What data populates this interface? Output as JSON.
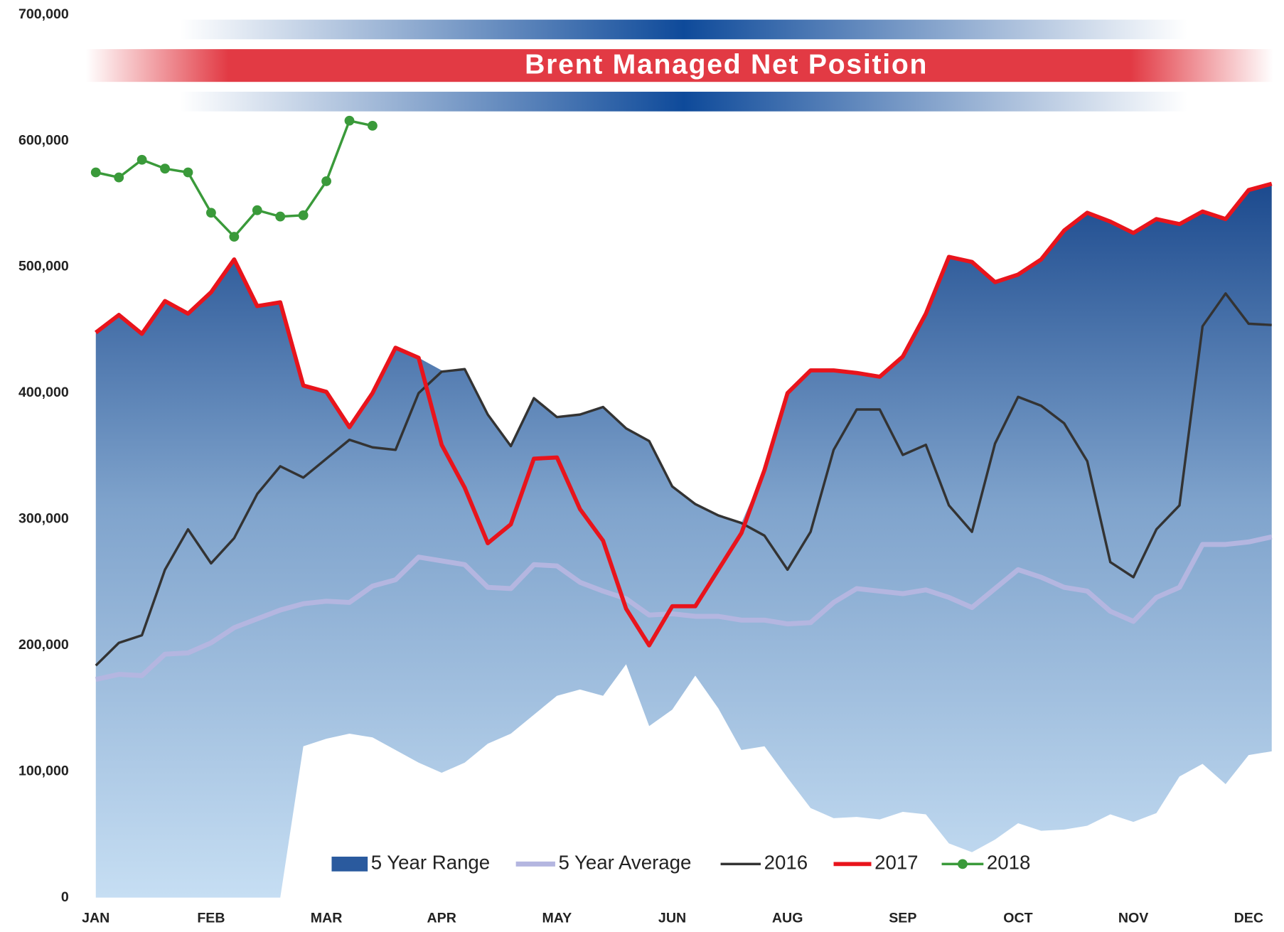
{
  "chart_data": {
    "type": "line",
    "title": "Brent Managed Net Position",
    "categories": [
      "JAN",
      null,
      null,
      null,
      null,
      "FEB",
      null,
      null,
      null,
      null,
      "MAR",
      null,
      null,
      null,
      null,
      "APR",
      null,
      null,
      null,
      null,
      "MAY",
      null,
      null,
      null,
      null,
      "JUN",
      null,
      null,
      null,
      null,
      "AUG",
      null,
      null,
      null,
      null,
      "SEP",
      null,
      null,
      null,
      null,
      "OCT",
      null,
      null,
      null,
      null,
      "NOV",
      null,
      null,
      null,
      null,
      "DEC",
      null
    ],
    "ylim": [
      0,
      700000
    ],
    "yticks": [
      0,
      {
        "value": 100000,
        "label": "100,000"
      },
      {
        "value": 200000,
        "label": "200,000"
      },
      {
        "value": 300000,
        "label": "300,000"
      },
      {
        "value": 400000,
        "label": "400,000"
      },
      {
        "value": 500000,
        "label": "500,000"
      },
      {
        "value": 600000,
        "label": "600,000"
      },
      {
        "value": 700000,
        "label": "700,000"
      }
    ],
    "range": {
      "name": "5 Year Range",
      "color": "#2a5a9e",
      "values": [
        448000,
        462000,
        447000,
        473000,
        463000,
        480000,
        506000,
        469000,
        472000,
        406000,
        401000,
        373000,
        400000,
        436000,
        428000,
        418000,
        419000,
        383000,
        358000,
        396000,
        381000,
        383000,
        389000,
        372000,
        362000,
        326000,
        312000,
        303000,
        297000,
        339000,
        400000,
        418000,
        418000,
        416000,
        413000,
        429000,
        463000,
        508000,
        504000,
        488000,
        494000,
        506000,
        529000,
        543000,
        536000,
        527000,
        538000,
        534000,
        544000,
        538000,
        561000,
        566000
      ],
      "low": [
        0,
        0,
        0,
        0,
        0,
        0,
        0,
        0,
        0,
        120000,
        126000,
        130000,
        127000,
        117000,
        107000,
        99000,
        107000,
        122000,
        130000,
        145000,
        160000,
        165000,
        160000,
        185000,
        136000,
        149000,
        176000,
        150000,
        117000,
        120000,
        95000,
        71000,
        63000,
        64000,
        62000,
        68000,
        66000,
        43000,
        36000,
        46000,
        59000,
        53000,
        54000,
        57000,
        66000,
        60000,
        67000,
        96000,
        106000,
        90000,
        113000,
        116000
      ]
    },
    "series": [
      {
        "name": "5 Year Average",
        "color": "#b4b6e0",
        "values": [
          173000,
          177000,
          176000,
          193000,
          194000,
          202000,
          214000,
          221000,
          228000,
          233000,
          235000,
          234000,
          247000,
          252000,
          270000,
          267000,
          264000,
          246000,
          245000,
          264000,
          263000,
          250000,
          243000,
          237000,
          224000,
          225000,
          223000,
          223000,
          220000,
          220000,
          217000,
          218000,
          234000,
          245000,
          243000,
          241000,
          244000,
          238000,
          230000,
          245000,
          260000,
          254000,
          246000,
          243000,
          227000,
          219000,
          238000,
          246000,
          280000,
          280000,
          282000,
          286000
        ]
      },
      {
        "name": "2016",
        "color": "#333333",
        "values": [
          184000,
          202000,
          208000,
          260000,
          292000,
          265000,
          285000,
          320000,
          342000,
          333000,
          348000,
          363000,
          357000,
          355000,
          400000,
          417000,
          419000,
          383000,
          358000,
          396000,
          381000,
          383000,
          389000,
          372000,
          362000,
          326000,
          312000,
          303000,
          297000,
          287000,
          260000,
          290000,
          355000,
          387000,
          387000,
          351000,
          359000,
          311000,
          290000,
          360000,
          397000,
          390000,
          376000,
          346000,
          266000,
          254000,
          292000,
          311000,
          453000,
          479000,
          455000,
          454000
        ]
      },
      {
        "name": "2017",
        "color": "#e8141c",
        "values": [
          448000,
          462000,
          447000,
          473000,
          463000,
          480000,
          506000,
          469000,
          472000,
          406000,
          401000,
          373000,
          400000,
          436000,
          428000,
          359000,
          325000,
          281000,
          296000,
          348000,
          349000,
          308000,
          283000,
          229000,
          200000,
          231000,
          231000,
          260000,
          289000,
          339000,
          400000,
          418000,
          418000,
          416000,
          413000,
          429000,
          463000,
          508000,
          504000,
          488000,
          494000,
          506000,
          529000,
          543000,
          536000,
          527000,
          538000,
          534000,
          544000,
          538000,
          561000,
          566000
        ]
      },
      {
        "name": "2018",
        "color": "#3a9a3a",
        "markers": true,
        "values": [
          575000,
          571000,
          585000,
          578000,
          575000,
          543000,
          524000,
          545000,
          540000,
          541000,
          568000,
          616000,
          612000,
          null,
          null,
          null,
          null,
          null,
          null,
          null,
          null,
          null,
          null,
          null,
          null,
          null,
          null,
          null,
          null,
          null,
          null,
          null,
          null,
          null,
          null,
          null,
          null,
          null,
          null,
          null,
          null,
          null,
          null,
          null,
          null,
          null,
          null,
          null,
          null,
          null,
          null,
          null
        ]
      }
    ]
  }
}
